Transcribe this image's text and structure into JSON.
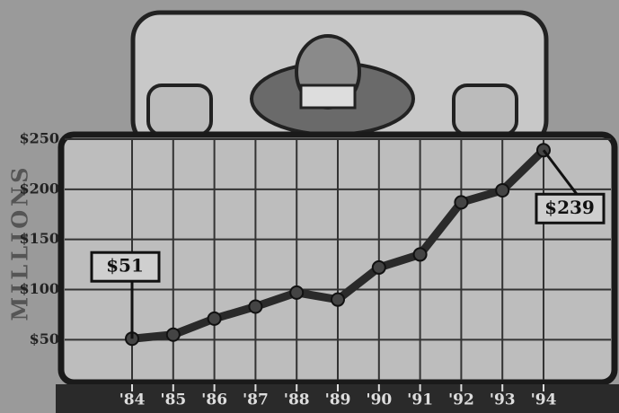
{
  "chart_data": {
    "type": "line",
    "y_label": "MILLIONS",
    "categories": [
      "'84",
      "'85",
      "'86",
      "'87",
      "'88",
      "'89",
      "'90",
      "'91",
      "'92",
      "'93",
      "'94"
    ],
    "values": [
      51,
      55,
      71,
      83,
      97,
      90,
      122,
      135,
      187,
      199,
      239
    ],
    "value_labels": [
      "$51",
      null,
      null,
      null,
      null,
      null,
      null,
      null,
      null,
      null,
      "$239"
    ],
    "color": "#2a2a2a",
    "ylim": [
      10,
      250
    ],
    "yticks": [
      {
        "value": 50,
        "label": "$50"
      },
      {
        "value": 100,
        "label": "$100"
      },
      {
        "value": 150,
        "label": "$150"
      },
      {
        "value": 200,
        "label": "$200"
      },
      {
        "value": 250,
        "label": "$250"
      }
    ],
    "grid": true
  }
}
